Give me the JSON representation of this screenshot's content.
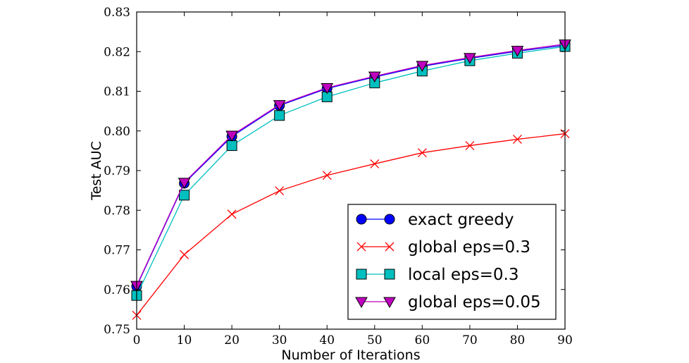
{
  "chart_data": {
    "type": "line",
    "xlabel": "Number of Iterations",
    "ylabel": "Test AUC",
    "xlim": [
      0,
      90
    ],
    "ylim": [
      0.75,
      0.83
    ],
    "x_ticks": [
      "0",
      "10",
      "20",
      "30",
      "40",
      "50",
      "60",
      "70",
      "80",
      "90"
    ],
    "y_ticks": [
      "0.75",
      "0.76",
      "0.77",
      "0.78",
      "0.79",
      "0.80",
      "0.81",
      "0.82",
      "0.83"
    ],
    "x": [
      0,
      10,
      20,
      30,
      40,
      50,
      60,
      70,
      80,
      90
    ],
    "grid": false,
    "legend_position": "lower-right",
    "series": [
      {
        "name": "exact greedy",
        "color": "#0000ff",
        "marker": "circle",
        "values": [
          0.7608,
          0.7868,
          0.7986,
          0.8064,
          0.8107,
          0.8136,
          0.8163,
          0.8183,
          0.8201,
          0.8216
        ]
      },
      {
        "name": "global eps=0.3",
        "color": "#ff0000",
        "marker": "x",
        "values": [
          0.7535,
          0.7688,
          0.779,
          0.7849,
          0.7888,
          0.7917,
          0.7945,
          0.7963,
          0.7979,
          0.7993
        ]
      },
      {
        "name": "local eps=0.3",
        "color": "#00bfbf",
        "marker": "square",
        "values": [
          0.7585,
          0.7838,
          0.7963,
          0.8039,
          0.8086,
          0.8121,
          0.8151,
          0.8177,
          0.8196,
          0.8213
        ]
      },
      {
        "name": "global eps=0.05",
        "color": "#bf00bf",
        "marker": "triangle-down",
        "values": [
          0.761,
          0.787,
          0.7989,
          0.8066,
          0.8109,
          0.8138,
          0.8165,
          0.8185,
          0.8203,
          0.8219
        ]
      }
    ]
  }
}
